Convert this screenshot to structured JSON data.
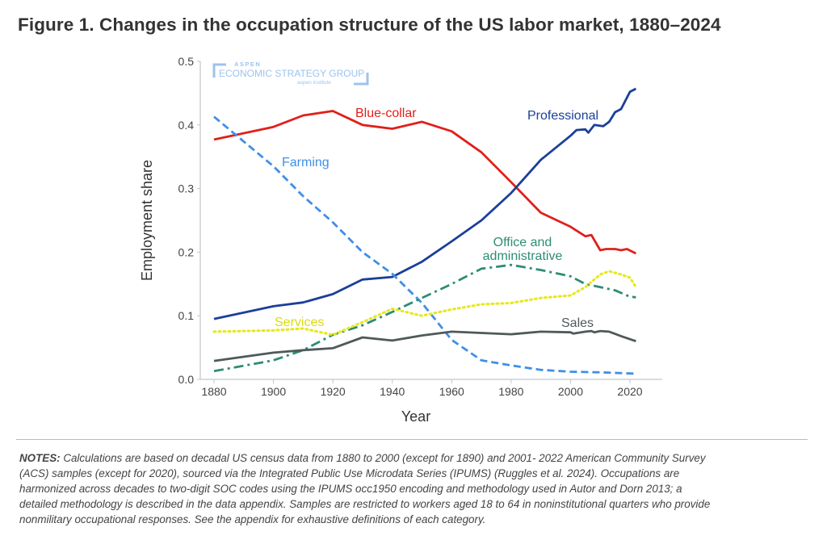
{
  "title": "Figure 1. Changes in the occupation structure of the US labor market, 1880–2024",
  "logo": {
    "line1": "ASPEN",
    "line2": "ECONOMIC STRATEGY GROUP",
    "line3": "aspen institute"
  },
  "chart_data": {
    "type": "line",
    "xlabel": "Year",
    "ylabel": "Employment share",
    "xlim": [
      1875,
      2030
    ],
    "ylim": [
      0,
      0.5
    ],
    "xticks": [
      1880,
      1900,
      1920,
      1940,
      1960,
      1980,
      2000,
      2020
    ],
    "yticks": [
      "0.0",
      "0.1",
      "0.2",
      "0.3",
      "0.4",
      "0.5"
    ],
    "grid": false,
    "series": [
      {
        "name": "Blue-collar",
        "color": "#e0201b",
        "style": "solid",
        "x": [
          1880,
          1900,
          1910,
          1920,
          1930,
          1940,
          1950,
          1960,
          1970,
          1980,
          1990,
          2000,
          2005,
          2007,
          2010,
          2012,
          2015,
          2017,
          2019,
          2022
        ],
        "y": [
          0.377,
          0.397,
          0.415,
          0.422,
          0.4,
          0.394,
          0.405,
          0.39,
          0.357,
          0.31,
          0.262,
          0.24,
          0.225,
          0.227,
          0.203,
          0.205,
          0.205,
          0.203,
          0.205,
          0.198
        ]
      },
      {
        "name": "Professional",
        "color": "#1b3f9a",
        "style": "solid",
        "x": [
          1880,
          1900,
          1910,
          1920,
          1930,
          1940,
          1950,
          1960,
          1970,
          1980,
          1990,
          2000,
          2002,
          2005,
          2006,
          2008,
          2011,
          2013,
          2015,
          2017,
          2020,
          2022
        ],
        "y": [
          0.095,
          0.115,
          0.121,
          0.134,
          0.157,
          0.161,
          0.185,
          0.217,
          0.25,
          0.293,
          0.345,
          0.383,
          0.392,
          0.393,
          0.388,
          0.4,
          0.398,
          0.405,
          0.42,
          0.425,
          0.452,
          0.457
        ]
      },
      {
        "name": "Farming",
        "color": "#3f8fe6",
        "style": "dashed",
        "x": [
          1880,
          1900,
          1910,
          1920,
          1930,
          1940,
          1950,
          1960,
          1970,
          1980,
          1990,
          2000,
          2010,
          2022
        ],
        "y": [
          0.413,
          0.335,
          0.288,
          0.247,
          0.2,
          0.166,
          0.12,
          0.062,
          0.03,
          0.022,
          0.015,
          0.012,
          0.011,
          0.009
        ]
      },
      {
        "name": "Office and administrative",
        "color": "#2e8c74",
        "style": "dashdot",
        "x": [
          1880,
          1900,
          1910,
          1920,
          1930,
          1940,
          1950,
          1960,
          1970,
          1980,
          1990,
          2000,
          2005,
          2010,
          2015,
          2020,
          2022
        ],
        "y": [
          0.013,
          0.03,
          0.046,
          0.07,
          0.085,
          0.106,
          0.128,
          0.15,
          0.174,
          0.18,
          0.172,
          0.162,
          0.15,
          0.145,
          0.14,
          0.13,
          0.129
        ]
      },
      {
        "name": "Services",
        "color": "#e6e81c",
        "style": "dotted",
        "x": [
          1880,
          1900,
          1910,
          1920,
          1930,
          1940,
          1950,
          1960,
          1970,
          1980,
          1990,
          2000,
          2005,
          2010,
          2013,
          2017,
          2020,
          2022
        ],
        "y": [
          0.075,
          0.077,
          0.08,
          0.07,
          0.09,
          0.111,
          0.1,
          0.11,
          0.118,
          0.12,
          0.128,
          0.132,
          0.145,
          0.165,
          0.17,
          0.165,
          0.16,
          0.145
        ]
      },
      {
        "name": "Sales",
        "color": "#4f5a5a",
        "style": "solid",
        "x": [
          1880,
          1900,
          1910,
          1920,
          1930,
          1940,
          1950,
          1960,
          1970,
          1980,
          1990,
          2000,
          2001,
          2005,
          2007,
          2008,
          2010,
          2013,
          2017,
          2022
        ],
        "y": [
          0.029,
          0.042,
          0.046,
          0.049,
          0.066,
          0.061,
          0.069,
          0.075,
          0.073,
          0.071,
          0.075,
          0.074,
          0.072,
          0.075,
          0.076,
          0.074,
          0.076,
          0.075,
          0.068,
          0.06
        ]
      }
    ],
    "labels": {
      "blue_collar": "Blue-collar",
      "professional": "Professional",
      "farming": "Farming",
      "office_1": "Office and",
      "office_2": "administrative",
      "services": "Services",
      "sales": "Sales"
    }
  },
  "notes": {
    "lead": "NOTES:",
    "lines": [
      " Calculations are based on decadal US census data from 1880 to 2000 (except for 1890) and 2001- 2022 American Community Survey",
      "(ACS) samples (except for 2020), sourced via the Integrated Public Use Microdata Series (IPUMS) (Ruggles et al. 2024). Occupations are",
      "harmonized across decades to two-digit SOC codes using the IPUMS occ1950 encoding and methodology used in Autor and Dorn 2013; a",
      "detailed methodology is described in the data appendix. Samples are restricted to workers aged 18 to 64 in noninstitutional quarters who provide",
      "nonmilitary occupational responses. See the appendix for exhaustive definitions of each category."
    ]
  }
}
